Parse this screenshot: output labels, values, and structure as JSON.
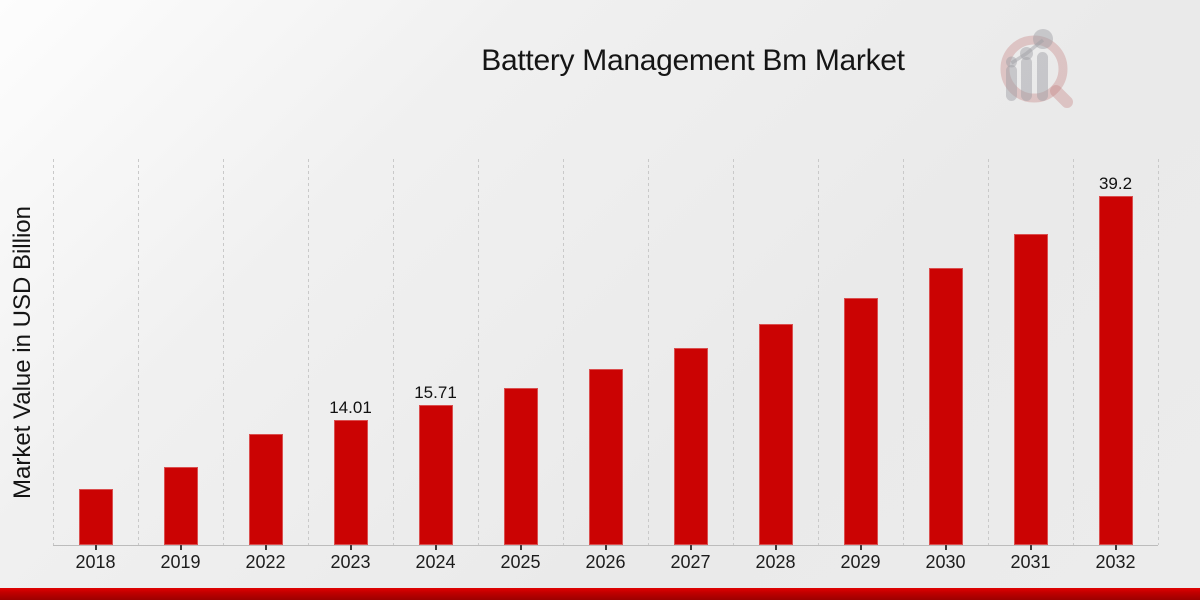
{
  "page": {
    "title": "Battery Management Bm Market"
  },
  "chart_data": {
    "type": "bar",
    "title": "Battery Management Bm Market",
    "xlabel": "",
    "ylabel": "Market Value in USD Billion",
    "categories": [
      "2018",
      "2019",
      "2022",
      "2023",
      "2024",
      "2025",
      "2026",
      "2027",
      "2028",
      "2029",
      "2030",
      "2031",
      "2032"
    ],
    "values": [
      6.33,
      8.8,
      12.5,
      14.01,
      15.71,
      17.61,
      19.74,
      22.13,
      24.81,
      27.81,
      31.17,
      34.94,
      39.2
    ],
    "bar_labels": [
      "",
      "",
      "",
      "14.01",
      "15.71",
      "",
      "",
      "",
      "",
      "",
      "",
      "",
      "39.2"
    ],
    "ylim": [
      0,
      43.4
    ],
    "y_axis_ticks_visible": false,
    "grid": "vertical-dashed",
    "legend": "none",
    "bar_color": "#cb0303",
    "gridline_color": "#c9c9c9",
    "footer_stripe_colors": [
      "#e00202",
      "#9c0000"
    ]
  },
  "logo": {
    "name": "magnifier-bar-chart-watermark"
  }
}
